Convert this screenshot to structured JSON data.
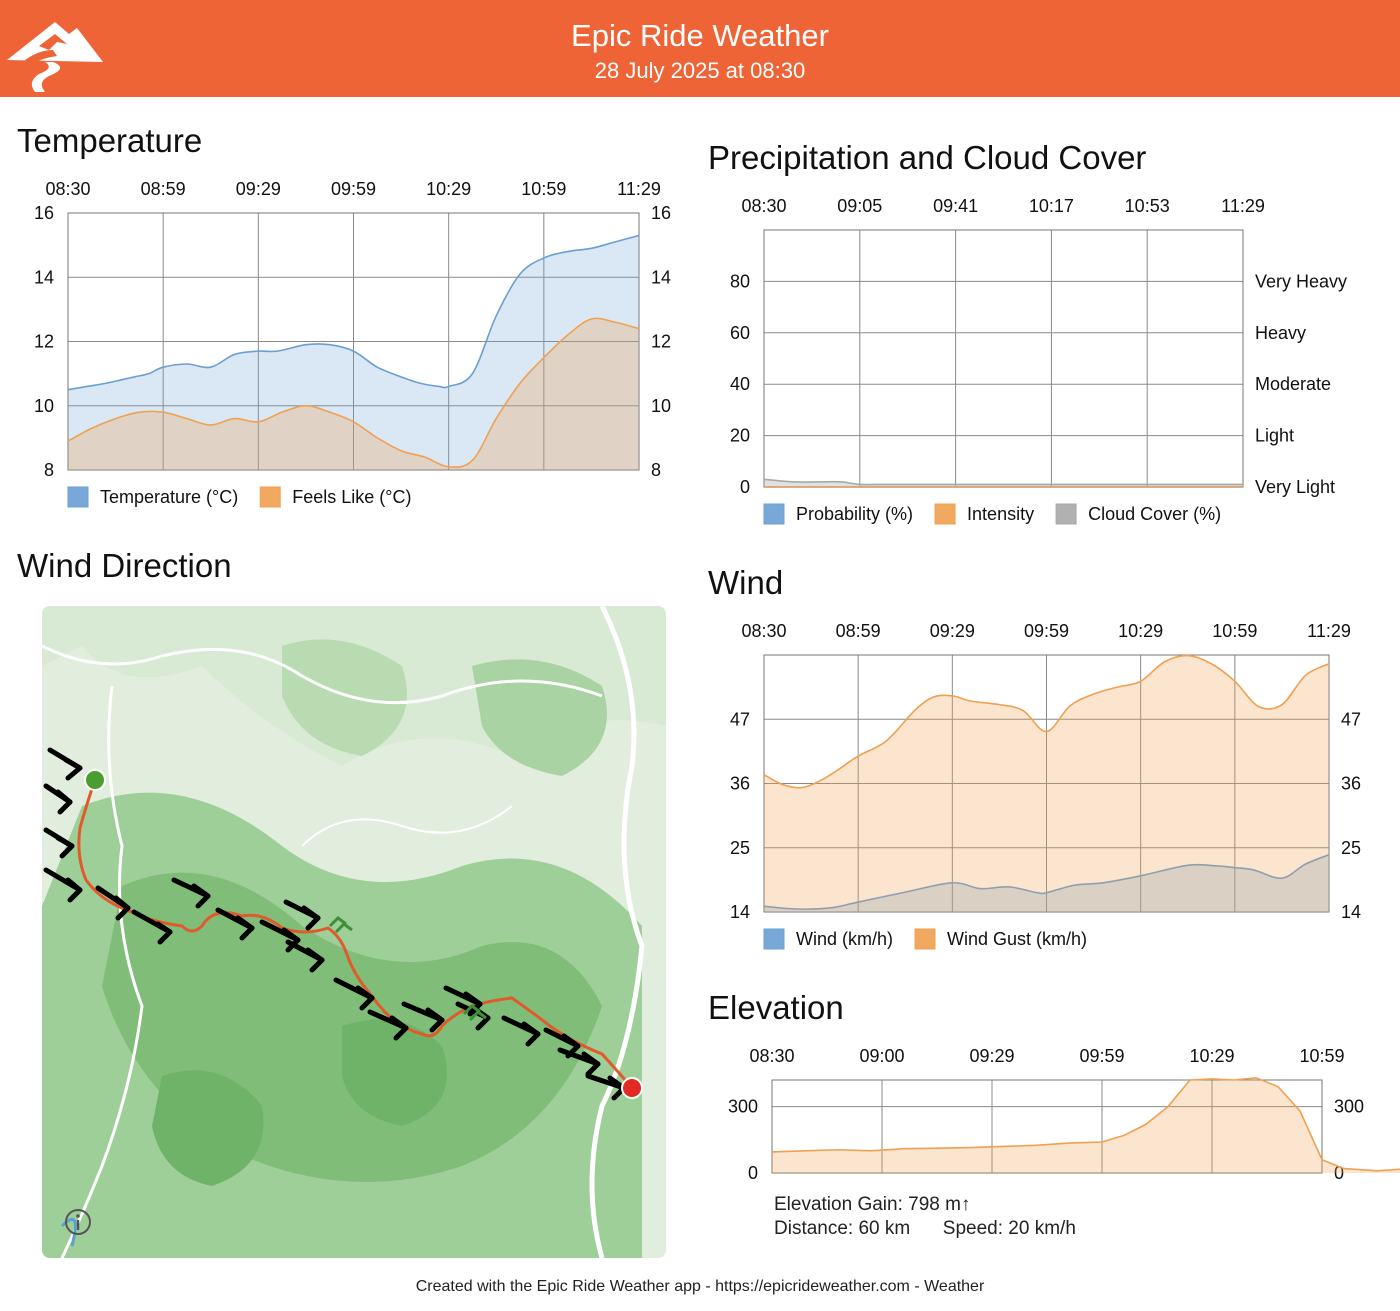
{
  "header": {
    "title": "Epic Ride Weather",
    "subtitle": "28 July 2025 at 08:30",
    "logo_icon": "mountain-road-logo",
    "color": "#EE6436"
  },
  "sections": {
    "temperature": "Temperature",
    "precipitation": "Precipitation and Cloud Cover",
    "wind_direction": "Wind Direction",
    "wind": "Wind",
    "elevation": "Elevation"
  },
  "chart_data": [
    {
      "id": "temperature",
      "type": "area",
      "x_ticks": [
        "08:30",
        "08:59",
        "09:29",
        "09:59",
        "10:29",
        "10:59",
        "11:29"
      ],
      "ylim": [
        8,
        16
      ],
      "y_ticks": [
        8,
        10,
        12,
        14,
        16
      ],
      "grid": true,
      "legend_position": "bottom-left",
      "series": [
        {
          "name": "Temperature (°C)",
          "color": "#6A9FD4",
          "x": [
            0,
            0.2,
            0.4,
            0.55,
            0.7,
            0.85,
            1.0,
            1.25,
            1.5,
            1.75,
            2.0,
            2.2,
            2.5,
            2.75,
            3.0,
            3.25,
            3.5,
            3.7,
            3.9,
            4.0,
            4.25,
            4.5,
            4.75,
            5.0,
            5.25,
            5.5,
            5.75,
            6.0
          ],
          "values": [
            10.5,
            10.6,
            10.7,
            10.8,
            10.9,
            11.0,
            11.2,
            11.3,
            11.2,
            11.6,
            11.7,
            11.7,
            11.9,
            11.9,
            11.7,
            11.2,
            10.9,
            10.7,
            10.6,
            10.6,
            11.0,
            12.8,
            14.1,
            14.6,
            14.8,
            14.9,
            15.1,
            15.3
          ]
        },
        {
          "name": "Feels Like (°C)",
          "color": "#F0A050",
          "x": [
            0,
            0.25,
            0.5,
            0.75,
            1.0,
            1.25,
            1.5,
            1.75,
            2.0,
            2.25,
            2.5,
            2.75,
            3.0,
            3.25,
            3.5,
            3.75,
            4.0,
            4.25,
            4.5,
            4.75,
            5.0,
            5.25,
            5.5,
            5.75,
            6.0
          ],
          "values": [
            8.9,
            9.3,
            9.6,
            9.8,
            9.8,
            9.6,
            9.4,
            9.6,
            9.5,
            9.8,
            10.0,
            9.8,
            9.5,
            9.0,
            8.6,
            8.4,
            8.1,
            8.3,
            9.6,
            10.7,
            11.5,
            12.2,
            12.7,
            12.6,
            12.4
          ]
        }
      ]
    },
    {
      "id": "precipitation",
      "type": "area",
      "x_ticks": [
        "08:30",
        "09:05",
        "09:41",
        "10:17",
        "10:53",
        "11:29"
      ],
      "ylim": [
        0,
        100
      ],
      "y_ticks": [
        0,
        20,
        40,
        60,
        80
      ],
      "intensity_labels": [
        "Very Light",
        "Light",
        "Moderate",
        "Heavy",
        "Very Heavy"
      ],
      "grid": true,
      "legend_position": "bottom",
      "series": [
        {
          "name": "Probability (%)",
          "color": "#6A9FD4",
          "values": [
            0,
            0,
            0,
            0,
            0,
            0
          ]
        },
        {
          "name": "Intensity",
          "color": "#F0A050",
          "values": [
            0,
            0,
            0,
            0,
            0,
            0
          ]
        },
        {
          "name": "Cloud Cover (%)",
          "color": "#A8A8A8",
          "x": [
            0,
            0.3,
            0.6,
            0.8,
            1.0,
            1.2,
            2.0,
            3.0,
            4.0,
            5.0
          ],
          "values": [
            3,
            2,
            2,
            2,
            1,
            1,
            1,
            1,
            1,
            1
          ]
        }
      ]
    },
    {
      "id": "wind",
      "type": "area",
      "x_ticks": [
        "08:30",
        "08:59",
        "09:29",
        "09:59",
        "10:29",
        "10:59",
        "11:29"
      ],
      "ylim": [
        14,
        58
      ],
      "y_ticks": [
        14,
        25,
        36,
        47
      ],
      "grid": true,
      "legend_position": "bottom-left",
      "series": [
        {
          "name": "Wind (km/h)",
          "color": "#6A9FD4",
          "x": [
            0,
            0.25,
            0.5,
            0.75,
            1.0,
            1.5,
            2.0,
            2.3,
            2.6,
            2.9,
            3.0,
            3.3,
            3.6,
            4.0,
            4.5,
            4.8,
            5.0,
            5.2,
            5.5,
            5.75,
            6.0
          ],
          "values": [
            15,
            14.6,
            14.5,
            14.8,
            15.7,
            17.4,
            19,
            18,
            18.3,
            17.3,
            17.3,
            18.6,
            19,
            20.2,
            22,
            21.9,
            21.6,
            21.2,
            19.8,
            22.2,
            23.8
          ]
        },
        {
          "name": "Wind Gust (km/h)",
          "color": "#F0A050",
          "x": [
            0,
            0.2,
            0.4,
            0.6,
            0.8,
            1.0,
            1.3,
            1.6,
            1.8,
            2.0,
            2.2,
            2.5,
            2.75,
            3.0,
            3.25,
            3.5,
            3.75,
            4.0,
            4.25,
            4.5,
            4.75,
            5.0,
            5.25,
            5.5,
            5.75,
            6.0
          ],
          "values": [
            37.5,
            35.8,
            35.3,
            36.5,
            38.5,
            40.7,
            43.3,
            48.5,
            50.8,
            51,
            50.1,
            49.5,
            48.5,
            44.9,
            49.3,
            51.3,
            52.5,
            53.5,
            56.8,
            57.9,
            56.5,
            53.5,
            49.2,
            49.5,
            54.5,
            56.5
          ]
        }
      ]
    },
    {
      "id": "elevation",
      "type": "area",
      "x_ticks": [
        "08:30",
        "09:00",
        "09:29",
        "09:59",
        "10:29",
        "10:59"
      ],
      "ylim": [
        0,
        420
      ],
      "y_ticks": [
        0,
        300
      ],
      "grid": true,
      "series": [
        {
          "name": "Elevation",
          "color": "#F0A050",
          "x": [
            0,
            0.3,
            0.6,
            0.9,
            1.2,
            1.5,
            1.8,
            2.1,
            2.4,
            2.7,
            3.0,
            3.2,
            3.4,
            3.6,
            3.8,
            4.0,
            4.2,
            4.4,
            4.6,
            4.8,
            5.0,
            5.2,
            5.5,
            5.8,
            6.0
          ],
          "values": [
            95,
            100,
            105,
            100,
            110,
            112,
            115,
            120,
            125,
            135,
            140,
            170,
            220,
            300,
            420,
            425,
            420,
            430,
            390,
            280,
            60,
            20,
            10,
            20,
            30
          ]
        }
      ]
    }
  ],
  "elevation_info": {
    "gain": "Elevation Gain: 798 m↑",
    "distance": "Distance: 60 km",
    "speed": "Speed: 20 km/h"
  },
  "map": {
    "start_color": "#4A9E2F",
    "end_color": "#E32A22",
    "route_color": "#E05A2C",
    "info_icon": "info-icon"
  },
  "footer": "Created with the Epic Ride Weather app - https://epicrideweather.com -  Weather"
}
